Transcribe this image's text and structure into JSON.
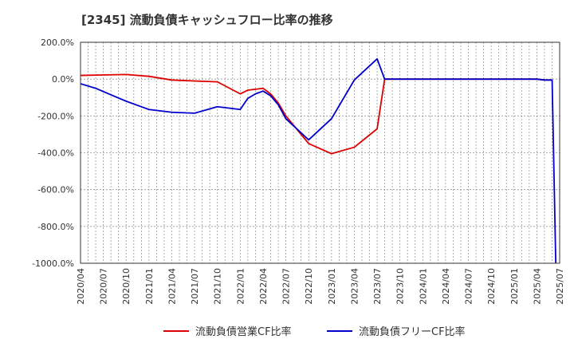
{
  "chart_data": {
    "type": "line",
    "title": "[2345]  流動負債キャッシュフロー比率の推移",
    "xlabel": "",
    "ylabel": "",
    "ylim": [
      -1000,
      200
    ],
    "yticks": [
      200,
      0,
      -200,
      -400,
      -600,
      -800,
      -1000
    ],
    "ytick_labels": [
      "200.0%",
      "0.0%",
      "-200.0%",
      "-400.0%",
      "-600.0%",
      "-800.0%",
      "-1000.0%"
    ],
    "xticks": [
      "2020/04",
      "2020/07",
      "2020/10",
      "2021/01",
      "2021/04",
      "2021/07",
      "2021/10",
      "2022/01",
      "2022/04",
      "2022/07",
      "2022/10",
      "2023/01",
      "2023/04",
      "2023/07",
      "2023/10",
      "2024/01",
      "2024/04",
      "2024/07",
      "2024/10",
      "2025/01",
      "2025/04",
      "2025/07"
    ],
    "grid": true,
    "legend_position": "bottom",
    "series": [
      {
        "name": "流動負債営業CF比率",
        "color": "#dd0000",
        "points": [
          [
            0,
            20
          ],
          [
            2,
            25
          ],
          [
            3,
            15
          ],
          [
            4,
            -5
          ],
          [
            5,
            -10
          ],
          [
            6,
            -15
          ],
          [
            7,
            -80
          ],
          [
            7.33,
            -60
          ],
          [
            7.67,
            -55
          ],
          [
            8,
            -50
          ],
          [
            8.33,
            -80
          ],
          [
            8.67,
            -130
          ],
          [
            9,
            -200
          ],
          [
            10,
            -350
          ],
          [
            11,
            -405
          ],
          [
            12,
            -370
          ],
          [
            13,
            -270
          ],
          [
            13.33,
            0
          ],
          [
            14,
            0
          ],
          [
            20,
            0
          ],
          [
            20.33,
            -5
          ],
          [
            20.67,
            -5
          ]
        ]
      },
      {
        "name": "流動負債フリーCF比率",
        "color": "#0000cc",
        "points": [
          [
            0,
            -25
          ],
          [
            0.67,
            -50
          ],
          [
            1.33,
            -85
          ],
          [
            2,
            -120
          ],
          [
            2.67,
            -150
          ],
          [
            3,
            -165
          ],
          [
            4,
            -180
          ],
          [
            5,
            -185
          ],
          [
            6,
            -150
          ],
          [
            7,
            -165
          ],
          [
            7.33,
            -105
          ],
          [
            7.67,
            -80
          ],
          [
            8,
            -65
          ],
          [
            8.33,
            -90
          ],
          [
            8.67,
            -140
          ],
          [
            9,
            -215
          ],
          [
            10,
            -330
          ],
          [
            11,
            -215
          ],
          [
            12,
            -5
          ],
          [
            13,
            110
          ],
          [
            13.33,
            0
          ],
          [
            14,
            0
          ],
          [
            20,
            0
          ],
          [
            20.33,
            -5
          ],
          [
            20.67,
            -5
          ],
          [
            20.83,
            -1000
          ]
        ]
      }
    ]
  }
}
